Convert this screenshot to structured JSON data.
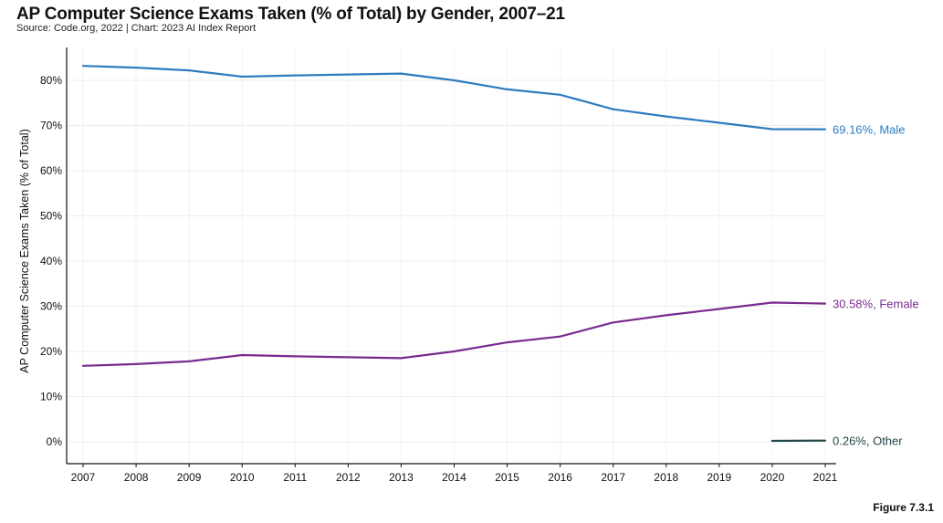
{
  "chart_data": {
    "type": "line",
    "title": "AP Computer Science Exams Taken (% of Total) by Gender, 2007–21",
    "subtitle": "Source: Code.org, 2022 | Chart: 2023 AI Index Report",
    "xlabel": "",
    "ylabel": "AP Computer Science Exams Taken (% of Total)",
    "ylim": [
      -5,
      90
    ],
    "yticks": [
      0,
      10,
      20,
      30,
      40,
      50,
      60,
      70,
      80
    ],
    "ytick_labels": [
      "0%",
      "10%",
      "20%",
      "30%",
      "40%",
      "50%",
      "60%",
      "70%",
      "80%"
    ],
    "x": [
      2007,
      2008,
      2009,
      2010,
      2011,
      2012,
      2013,
      2014,
      2015,
      2016,
      2017,
      2018,
      2019,
      2020,
      2021
    ],
    "xtick_labels": [
      "2007",
      "2008",
      "2009",
      "2010",
      "2011",
      "2012",
      "2013",
      "2014",
      "2015",
      "2016",
      "2017",
      "2018",
      "2019",
      "2020",
      "2021"
    ],
    "series": [
      {
        "name": "Male",
        "color": "#2e7bbf",
        "values": [
          83.2,
          82.8,
          82.2,
          80.8,
          81.1,
          81.3,
          81.5,
          80.0,
          78.0,
          76.8,
          73.6,
          72.0,
          70.6,
          69.2,
          69.16
        ],
        "end_label": "69.16%, Male"
      },
      {
        "name": "Female",
        "color": "#7a2a8f",
        "values": [
          16.8,
          17.2,
          17.8,
          19.2,
          18.9,
          18.7,
          18.5,
          20.0,
          22.0,
          23.3,
          26.4,
          28.0,
          29.4,
          30.8,
          30.58
        ],
        "end_label": "30.58%, Female"
      },
      {
        "name": "Other",
        "color": "#1f4747",
        "values": [
          null,
          null,
          null,
          null,
          null,
          null,
          null,
          null,
          null,
          null,
          null,
          null,
          null,
          0.2,
          0.26
        ],
        "end_label": "0.26%, Other"
      }
    ]
  },
  "figure_label": "Figure 7.3.1"
}
